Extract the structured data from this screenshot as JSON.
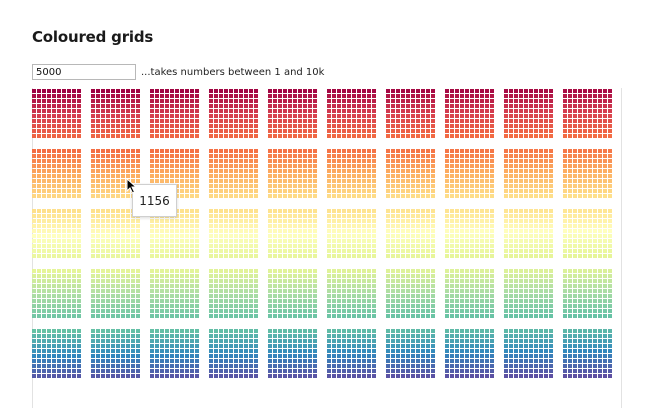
{
  "page": {
    "title": "Coloured grids"
  },
  "controls": {
    "count_value": "5000",
    "hint": "...takes numbers between 1 and 10k"
  },
  "grid": {
    "total_cells": 5000,
    "block_columns": 10,
    "block_rows": 5,
    "cells_per_block_side": 10,
    "palette": [
      "#9e0142",
      "#d53e4f",
      "#f46d43",
      "#fdae61",
      "#fee08b",
      "#ffffbf",
      "#e6f598",
      "#abdda4",
      "#66c2a5",
      "#3288bd",
      "#5e4fa2"
    ]
  },
  "tooltip": {
    "value": "1156"
  },
  "cursor": {
    "icon": "arrow-pointer-icon"
  }
}
